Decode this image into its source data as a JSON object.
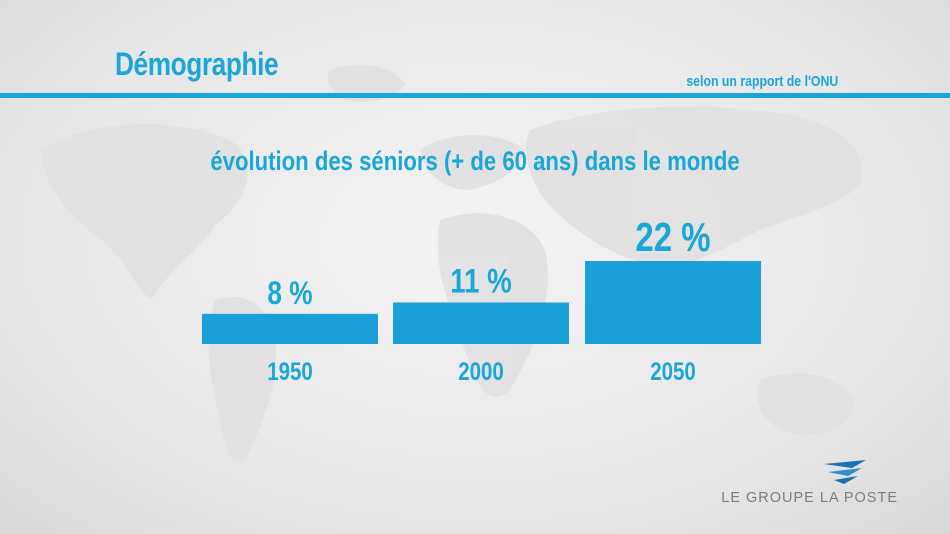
{
  "header": {
    "title": "Démographie",
    "source": "selon un rapport de l'ONU"
  },
  "logo": {
    "text": "LE GROUPE LA POSTE",
    "icon": "la-poste-bird-icon"
  },
  "colors": {
    "accent": "#1aa6d8",
    "bar": "#1a9fd8",
    "background": "#ececec"
  },
  "chart_data": {
    "type": "bar",
    "title": "évolution des séniors (+ de 60 ans) dans le monde",
    "categories": [
      "1950",
      "2000",
      "2050"
    ],
    "values": [
      8,
      11,
      22
    ],
    "data_labels": [
      "8 %",
      "11 %",
      "22 %"
    ],
    "unit": "%",
    "xlabel": "",
    "ylabel": "",
    "grid": false,
    "legend": "none"
  }
}
